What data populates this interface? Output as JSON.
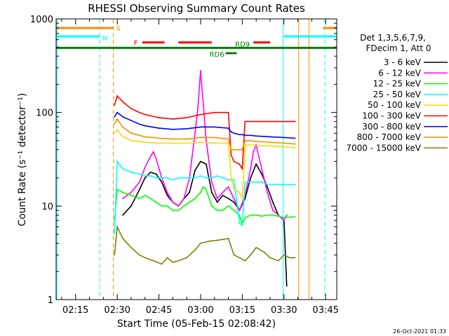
{
  "chart_data": {
    "type": "line",
    "title": "RHESSI Observing Summary Count Rates",
    "xlabel": "Start Time (05-Feb-15 02:08:42)",
    "ylabel": "Count Rate (s⁻¹ detector⁻¹)",
    "yscale": "log",
    "ylim": [
      1,
      1000
    ],
    "xlim_minutes": [
      128,
      229
    ],
    "x_ticks": [
      {
        "label": "02:15",
        "minutes": 135
      },
      {
        "label": "02:30",
        "minutes": 150
      },
      {
        "label": "02:45",
        "minutes": 165
      },
      {
        "label": "03:00",
        "minutes": 180
      },
      {
        "label": "03:15",
        "minutes": 195
      },
      {
        "label": "03:30",
        "minutes": 210
      },
      {
        "label": "03:45",
        "minutes": 225
      }
    ],
    "y_ticks": [
      {
        "label": "1",
        "value": 1
      },
      {
        "label": "10",
        "value": 10
      },
      {
        "label": "100",
        "value": 100
      },
      {
        "label": "1000",
        "value": 1000
      }
    ],
    "legend": {
      "header": [
        "Det 1,3,5,6,7,9,",
        "FDecim 1, Att 0"
      ],
      "position": "right"
    },
    "series": [
      {
        "name": "3 - 6 keV",
        "color": "#000000",
        "x": [
          152,
          155,
          158,
          160,
          162,
          164,
          166,
          168,
          170,
          172,
          174,
          176,
          178,
          180,
          182,
          184,
          186,
          188,
          190,
          192,
          194,
          196,
          198,
          200,
          202,
          204,
          206,
          208,
          210,
          211
        ],
        "y": [
          8,
          10,
          15,
          20,
          23,
          22,
          18,
          13,
          11,
          10,
          12,
          14,
          24,
          30,
          28,
          14,
          11,
          13,
          12,
          11,
          9,
          12,
          20,
          28,
          22,
          16,
          11,
          8,
          7,
          1.4
        ]
      },
      {
        "name": "6 - 12 keV",
        "color": "#ff00ff",
        "x": [
          152,
          155,
          158,
          160,
          162,
          163,
          164,
          166,
          168,
          170,
          172,
          174,
          176,
          177,
          178,
          179,
          180,
          181,
          182,
          184,
          186,
          188,
          190,
          192,
          194,
          196,
          198,
          199,
          200,
          202,
          204,
          206,
          208,
          210,
          211
        ],
        "y": [
          12,
          14,
          18,
          26,
          34,
          38,
          32,
          20,
          14,
          11,
          10,
          12,
          20,
          35,
          60,
          110,
          280,
          120,
          50,
          18,
          12,
          14,
          16,
          12,
          9,
          13,
          25,
          38,
          45,
          25,
          14,
          9,
          8,
          7,
          8
        ]
      },
      {
        "name": "12 - 25 keV",
        "color": "#00ff00",
        "x": [
          149,
          150,
          152,
          155,
          158,
          160,
          162,
          164,
          166,
          168,
          170,
          172,
          174,
          176,
          178,
          180,
          181,
          182,
          184,
          186,
          188,
          190,
          192,
          194,
          195,
          196,
          198,
          200,
          202,
          204,
          206,
          208,
          210,
          212,
          214
        ],
        "y": [
          7,
          15,
          14,
          13,
          12,
          13,
          12,
          11,
          10,
          10,
          9,
          9,
          10,
          11,
          12,
          14,
          16,
          15,
          10,
          9,
          9,
          10,
          9,
          8,
          6.3,
          7.5,
          8,
          8,
          7.8,
          8,
          8,
          7.8,
          7.5,
          7.6,
          7.7
        ]
      },
      {
        "name": "25 - 50 keV",
        "color": "#00ffff",
        "x": [
          149,
          150,
          152,
          155,
          158,
          160,
          162,
          164,
          166,
          168,
          170,
          172,
          174,
          176,
          178,
          180,
          182,
          184,
          186,
          188,
          190,
          192,
          194,
          195,
          196,
          198,
          200,
          202,
          204,
          206,
          208,
          210,
          212,
          214
        ],
        "y": [
          5,
          30,
          25,
          23,
          22,
          21,
          21,
          20,
          20,
          20,
          19,
          20,
          20,
          20,
          20,
          21,
          20,
          20,
          21,
          20,
          19,
          19,
          6.5,
          6.3,
          18,
          18,
          18,
          18,
          17,
          17,
          17,
          17,
          17,
          17
        ]
      },
      {
        "name": "50 - 100 keV",
        "color": "#ffd700",
        "x": [
          149,
          150,
          152,
          155,
          158,
          160,
          165,
          170,
          175,
          180,
          185,
          190,
          191,
          192,
          194,
          195,
          196,
          198,
          200,
          205,
          210,
          214
        ],
        "y": [
          60,
          65,
          55,
          50,
          49,
          48,
          47,
          47,
          47,
          48,
          47,
          47,
          20,
          15,
          14,
          12,
          45,
          45,
          44,
          44,
          43,
          42
        ]
      },
      {
        "name": "100 - 300 keV",
        "color": "#ff0000",
        "x": [
          149,
          150,
          152,
          155,
          158,
          160,
          165,
          170,
          175,
          180,
          185,
          190,
          191,
          192,
          194,
          195,
          196,
          198,
          200,
          205,
          210,
          214
        ],
        "y": [
          120,
          150,
          130,
          110,
          100,
          95,
          88,
          85,
          88,
          95,
          100,
          100,
          35,
          30,
          28,
          25,
          80,
          80,
          80,
          80,
          80,
          80
        ]
      },
      {
        "name": "300 - 800 keV",
        "color": "#0000ff",
        "x": [
          149,
          150,
          152,
          155,
          158,
          160,
          165,
          170,
          175,
          180,
          185,
          190,
          191,
          192,
          194,
          195,
          196,
          198,
          200,
          205,
          210,
          214
        ],
        "y": [
          90,
          100,
          90,
          82,
          75,
          72,
          68,
          66,
          67,
          70,
          70,
          68,
          62,
          60,
          58,
          58,
          57,
          57,
          56,
          55,
          54,
          53
        ]
      },
      {
        "name": "800 - 7000 keV",
        "color": "#ff8c00",
        "x": [
          149,
          150,
          152,
          155,
          158,
          160,
          165,
          170,
          175,
          180,
          185,
          190,
          191,
          192,
          194,
          195,
          196,
          198,
          200,
          205,
          210,
          214
        ],
        "y": [
          75,
          85,
          70,
          60,
          57,
          55,
          53,
          52,
          52,
          54,
          54,
          52,
          40,
          40,
          40,
          40,
          50,
          50,
          49,
          48,
          47,
          46
        ]
      },
      {
        "name": "7000 - 15000 keV",
        "color": "#808000",
        "x": [
          149,
          150,
          152,
          155,
          158,
          160,
          163,
          166,
          168,
          170,
          172,
          175,
          178,
          180,
          183,
          186,
          188,
          190,
          192,
          194,
          196,
          198,
          200,
          203,
          205,
          208,
          210,
          212,
          214
        ],
        "y": [
          3,
          6,
          4.5,
          3.6,
          3,
          2.8,
          2.6,
          2.4,
          2.8,
          2.5,
          2.6,
          2.8,
          3.4,
          4,
          4.2,
          4.3,
          4.4,
          4.5,
          3,
          2.8,
          2.6,
          3,
          3.6,
          3.2,
          2.8,
          2.6,
          3,
          2.8,
          2.8
        ]
      }
    ],
    "flags": [
      {
        "label": "S",
        "color": "#ff8c00",
        "segments": [
          [
            128,
            148.6
          ],
          [
            224,
            229
          ]
        ],
        "level": 800
      },
      {
        "label": "N",
        "color": "#00ffff",
        "segments": [
          [
            128,
            143.7
          ],
          [
            210,
            229
          ]
        ],
        "level": 650
      },
      {
        "label": "F",
        "color": "#ff0000",
        "segments": [
          [
            159,
            167
          ],
          [
            172,
            184
          ],
          [
            199,
            205
          ]
        ],
        "level": 560
      },
      {
        "label": "RD9",
        "color": "#008000",
        "segments": [
          [
            128,
            229
          ]
        ],
        "level": 490
      },
      {
        "label": "RD6",
        "color": "#008000",
        "segments": [
          [
            189,
            193
          ]
        ],
        "level": 430
      }
    ],
    "vlines": [
      {
        "minutes": 128.3,
        "color": "#00ffff",
        "dashed": false
      },
      {
        "minutes": 143.7,
        "color": "#00ffff",
        "dashed": true
      },
      {
        "minutes": 148.6,
        "color": "#ff8c00",
        "dashed": true
      },
      {
        "minutes": 209.7,
        "color": "#00ffff",
        "dashed": false
      },
      {
        "minutes": 215.3,
        "color": "#ff8c00",
        "dashed": false
      },
      {
        "minutes": 219.0,
        "color": "#ff8c00",
        "dashed": false
      },
      {
        "minutes": 224.7,
        "color": "#00ffff",
        "dashed": true
      }
    ],
    "footer_date": "26-Oct-2021 01:33"
  }
}
